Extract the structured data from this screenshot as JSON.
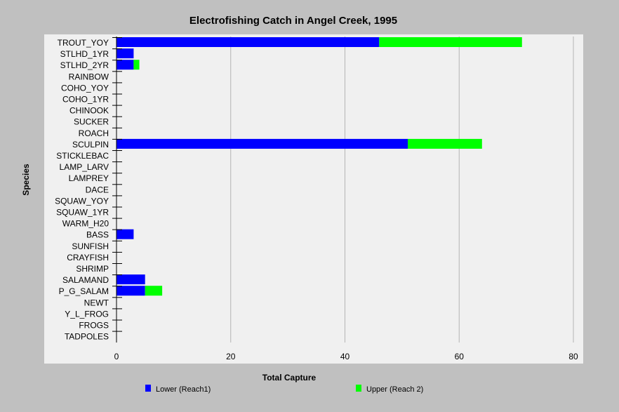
{
  "chart_data": {
    "type": "bar",
    "orientation": "horizontal",
    "stacked": true,
    "title": "Electrofishing Catch in Angel Creek, 1995",
    "xlabel": "Total Capture",
    "ylabel": "Species",
    "xlim": [
      0,
      80
    ],
    "xticks": [
      0,
      20,
      40,
      60,
      80
    ],
    "grid": "vertical",
    "legend_position": "bottom",
    "categories": [
      "TROUT_YOY",
      "STLHD_1YR",
      "STLHD_2YR",
      "RAINBOW",
      "COHO_YOY",
      "COHO_1YR",
      "CHINOOK",
      "SUCKER",
      "ROACH",
      "SCULPIN",
      "STICKLEBAC",
      "LAMP_LARV",
      "LAMPREY",
      "DACE",
      "SQUAW_YOY",
      "SQUAW_1YR",
      "WARM_H20",
      "BASS",
      "SUNFISH",
      "CRAYFISH",
      "SHRIMP",
      "SALAMAND",
      "P_G_SALAM",
      "NEWT",
      "Y_L_FROG",
      "FROGS",
      "TADPOLES"
    ],
    "series": [
      {
        "name": "Lower (Reach1)",
        "color": "#0000ff",
        "values": [
          46,
          3,
          3,
          0,
          0,
          0,
          0,
          0,
          0,
          51,
          0,
          0,
          0,
          0,
          0,
          0,
          0,
          3,
          0,
          0,
          0,
          5,
          5,
          0,
          0,
          0,
          0
        ]
      },
      {
        "name": "Upper (Reach 2)",
        "color": "#00ff00",
        "values": [
          25,
          0,
          1,
          0,
          0,
          0,
          0,
          0,
          0,
          13,
          0,
          0,
          0,
          0,
          0,
          0,
          0,
          0,
          0,
          0,
          0,
          0,
          3,
          0,
          0,
          0,
          0
        ]
      }
    ]
  }
}
